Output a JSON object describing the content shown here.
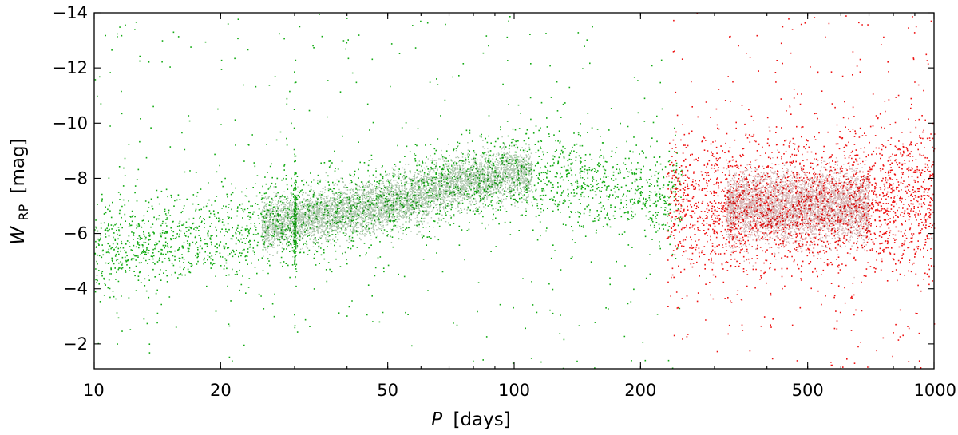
{
  "chart_data": {
    "type": "scatter",
    "title": "",
    "xlabel": {
      "symbol": "P",
      "unit": "[days]"
    },
    "ylabel": {
      "symbol": "W",
      "subscript": "RP",
      "unit": "[mag]"
    },
    "x_scale": "log",
    "xlim": [
      10,
      1000
    ],
    "ylim": [
      -1.1,
      -14
    ],
    "y_inverted": true,
    "x_ticks": [
      10,
      20,
      50,
      100,
      200,
      500,
      1000
    ],
    "x_tick_labels": [
      "10",
      "20",
      "50",
      "100",
      "200",
      "500",
      "1000"
    ],
    "y_ticks": [
      -2,
      -4,
      -6,
      -8,
      -10,
      -12,
      -14
    ],
    "y_tick_labels": [
      "−2",
      "−4",
      "−6",
      "−8",
      "−10",
      "−12",
      "−14"
    ],
    "grid": false,
    "legend": "none",
    "series": [
      {
        "color": "#11aa11",
        "period_range_days": [
          10,
          250
        ],
        "trend_points": [
          {
            "x": 12,
            "y": -5.7
          },
          {
            "x": 20,
            "y": -6.0
          },
          {
            "x": 30,
            "y": -6.5
          },
          {
            "x": 50,
            "y": -7.1
          },
          {
            "x": 75,
            "y": -7.9
          },
          {
            "x": 100,
            "y": -8.2
          },
          {
            "x": 200,
            "y": -7.5
          }
        ],
        "spike_period_days": 30
      },
      {
        "color": "#ee1111",
        "period_range_days": [
          230,
          1000
        ],
        "trend_points": [
          {
            "x": 250,
            "y": -7.0
          },
          {
            "x": 400,
            "y": -7.0
          },
          {
            "x": 500,
            "y": -7.1
          },
          {
            "x": 1000,
            "y": -7.3
          }
        ]
      }
    ]
  }
}
